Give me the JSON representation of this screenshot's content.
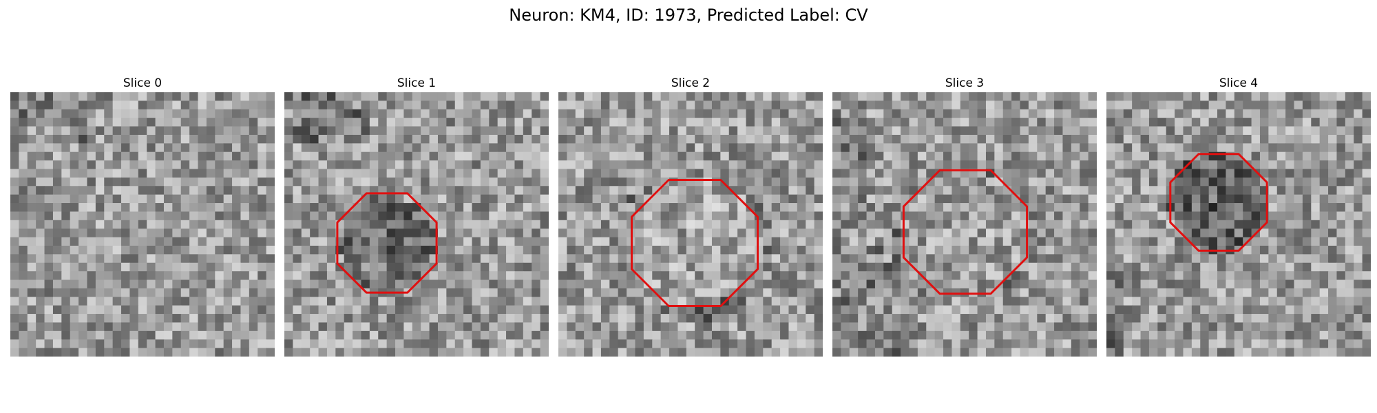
{
  "figure": {
    "title": "Neuron: KM4, ID: 1973, Predicted Label: CV"
  },
  "panels": [
    {
      "title": "Slice 0",
      "outline": null
    },
    {
      "title": "Slice 1",
      "outline": {
        "shape": "octagon",
        "color": "#e01010"
      }
    },
    {
      "title": "Slice 2",
      "outline": {
        "shape": "octagon",
        "color": "#e01010"
      }
    },
    {
      "title": "Slice 3",
      "outline": {
        "shape": "octagon",
        "color": "#e01010"
      }
    },
    {
      "title": "Slice 4",
      "outline": {
        "shape": "octagon",
        "color": "#e01010"
      }
    }
  ],
  "style": {
    "grid_cells": 31,
    "outline_color": "#e01010"
  }
}
